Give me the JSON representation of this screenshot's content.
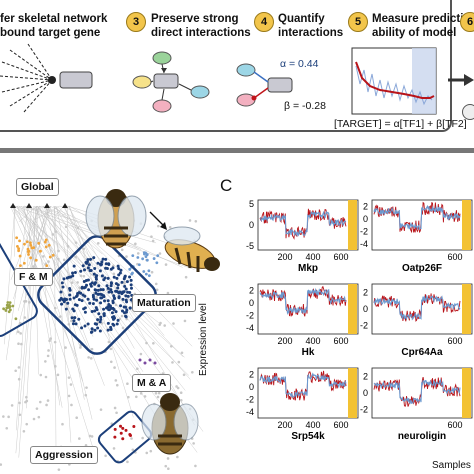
{
  "steps": [
    {
      "num": "",
      "line1": "fer skeletal network",
      "line2": "bound target gene"
    },
    {
      "num": "3",
      "line1": "Preserve strong",
      "line2": "direct interactions"
    },
    {
      "num": "4",
      "line1": "Quantify",
      "line2": "interactions"
    },
    {
      "num": "5",
      "line1": "Measure predictive",
      "line2": "ability of model"
    }
  ],
  "alpha_text": "α = 0.44",
  "beta_text": "β = -0.28",
  "formula_text": "[TARGET] = α[TF1] + β[TF2]",
  "next_num": "6",
  "panel_c_letter": "C",
  "network_labels": {
    "global": "Global",
    "fm": "F & M",
    "maturation": "Maturation",
    "ma": "M & A",
    "aggression": "Aggression"
  },
  "colors": {
    "orange": "#f0a43a",
    "blue": "#6c9ad0",
    "red": "#b8141a",
    "gold": "#f3c233",
    "navy": "#1c3f7a",
    "dot_gray": "#c8c8c8"
  },
  "chart_data": {
    "type": "line",
    "title": "",
    "xlabel": "Samples",
    "ylabel": "Expression level",
    "panels": [
      {
        "gene": "Mkp",
        "yticks": [
          "5",
          "0",
          "-5"
        ],
        "ylim": [
          -6,
          6
        ]
      },
      {
        "gene": "Oatp26F",
        "yticks": [
          "2",
          "0",
          "-2",
          "-4"
        ],
        "ylim": [
          -5,
          3
        ]
      },
      {
        "gene": "Hk",
        "yticks": [
          "2",
          "0",
          "-2",
          "-4"
        ],
        "ylim": [
          -5,
          3
        ]
      },
      {
        "gene": "Cpr64Aa",
        "yticks": [
          "2",
          "0",
          "-2"
        ],
        "ylim": [
          -3,
          3
        ]
      },
      {
        "gene": "Srp54k",
        "yticks": [
          "2",
          "0",
          "-2",
          "-4"
        ],
        "ylim": [
          -5,
          3
        ]
      },
      {
        "gene": "neuroligin",
        "yticks": [
          "2",
          "0",
          "-2"
        ],
        "ylim": [
          -3,
          3
        ]
      }
    ],
    "xticks_left": [
      "200",
      "400",
      "600"
    ],
    "xticks_right": [
      "600"
    ],
    "series": [
      {
        "name": "",
        "color": "#b8141a"
      },
      {
        "name": "",
        "color": "#6c9ad0"
      }
    ]
  }
}
